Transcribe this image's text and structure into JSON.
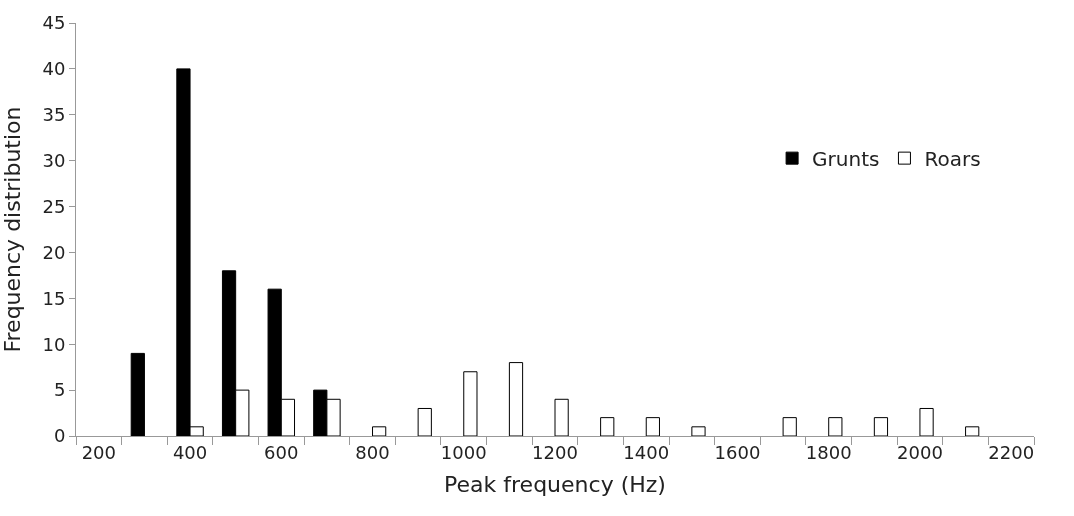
{
  "chart_data": {
    "type": "bar",
    "xlabel": "Peak frequency (Hz)",
    "ylabel": "Frequency distribution",
    "categories": [
      "200",
      null,
      "400",
      null,
      "600",
      null,
      "800",
      null,
      "1000",
      null,
      "1200",
      null,
      "1400",
      null,
      "1600",
      null,
      "1800",
      null,
      "2000",
      null,
      "2200"
    ],
    "series": [
      {
        "name": "Grunts",
        "color": "#000000",
        "values": [
          null,
          9,
          40,
          18,
          16,
          5,
          null,
          null,
          null,
          null,
          null,
          null,
          null,
          null,
          null,
          null,
          null,
          null,
          null,
          null,
          null
        ]
      },
      {
        "name": "Roars",
        "color": "#ffffff",
        "values": [
          null,
          null,
          1,
          5,
          4,
          4,
          1,
          3,
          7,
          8,
          4,
          2,
          2,
          1,
          null,
          2,
          2,
          2,
          3,
          1,
          null
        ]
      }
    ],
    "ylim": [
      0,
      45
    ],
    "yticks": [
      0,
      5,
      10,
      15,
      20,
      25,
      30,
      35,
      40,
      45
    ],
    "legend": "top right"
  }
}
